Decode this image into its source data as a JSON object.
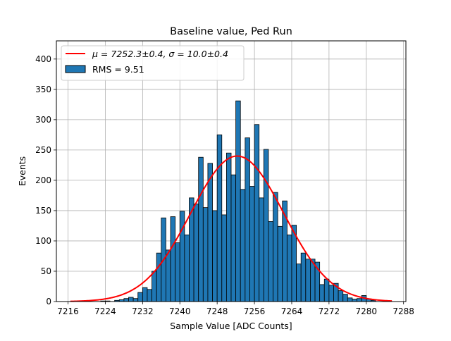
{
  "chart_data": {
    "type": "bar",
    "title": "Baseline value, Ped Run",
    "xlabel": "Sample Value [ADC Counts]",
    "ylabel": "Events",
    "xlim": [
      7213.5,
      7288.5
    ],
    "ylim": [
      0,
      430
    ],
    "x_ticks": [
      7216,
      7224,
      7232,
      7240,
      7248,
      7256,
      7264,
      7272,
      7280,
      7288
    ],
    "y_ticks": [
      0,
      50,
      100,
      150,
      200,
      250,
      300,
      350,
      400
    ],
    "grid": true,
    "legend_position": "top-left",
    "bar_color": "#1f77b4",
    "fit_color": "#ff0000",
    "histogram": {
      "name": "RMS = 9.51",
      "bins": [
        [
          7223,
          1
        ],
        [
          7224,
          1
        ],
        [
          7225,
          0
        ],
        [
          7226,
          2
        ],
        [
          7227,
          3
        ],
        [
          7228,
          5
        ],
        [
          7229,
          7
        ],
        [
          7230,
          5
        ],
        [
          7231,
          15
        ],
        [
          7232,
          23
        ],
        [
          7233,
          20
        ],
        [
          7234,
          50
        ],
        [
          7235,
          80
        ],
        [
          7236,
          138
        ],
        [
          7237,
          85
        ],
        [
          7238,
          140
        ],
        [
          7239,
          97
        ],
        [
          7240,
          149
        ],
        [
          7241,
          110
        ],
        [
          7242,
          171
        ],
        [
          7243,
          161
        ],
        [
          7244,
          238
        ],
        [
          7245,
          155
        ],
        [
          7246,
          228
        ],
        [
          7247,
          150
        ],
        [
          7248,
          275
        ],
        [
          7249,
          143
        ],
        [
          7250,
          245
        ],
        [
          7251,
          209
        ],
        [
          7252,
          331
        ],
        [
          7253,
          185
        ],
        [
          7254,
          270
        ],
        [
          7255,
          190
        ],
        [
          7256,
          292
        ],
        [
          7257,
          171
        ],
        [
          7258,
          251
        ],
        [
          7259,
          132
        ],
        [
          7260,
          180
        ],
        [
          7261,
          124
        ],
        [
          7262,
          166
        ],
        [
          7263,
          110
        ],
        [
          7264,
          126
        ],
        [
          7265,
          62
        ],
        [
          7266,
          80
        ],
        [
          7267,
          70
        ],
        [
          7268,
          70
        ],
        [
          7269,
          65
        ],
        [
          7270,
          28
        ],
        [
          7271,
          37
        ],
        [
          7272,
          27
        ],
        [
          7273,
          30
        ],
        [
          7274,
          18
        ],
        [
          7275,
          12
        ],
        [
          7276,
          6
        ],
        [
          7277,
          4
        ],
        [
          7278,
          5
        ],
        [
          7279,
          10
        ],
        [
          7280,
          4
        ],
        [
          7281,
          2
        ]
      ]
    },
    "fit": {
      "name_prefix": "μ = 7252.3±0.4, σ = 10.0±0.4",
      "mu": 7252.3,
      "sigma": 10.0,
      "amplitude": 240,
      "x_range": [
        7216.5,
        7285.5
      ]
    }
  }
}
